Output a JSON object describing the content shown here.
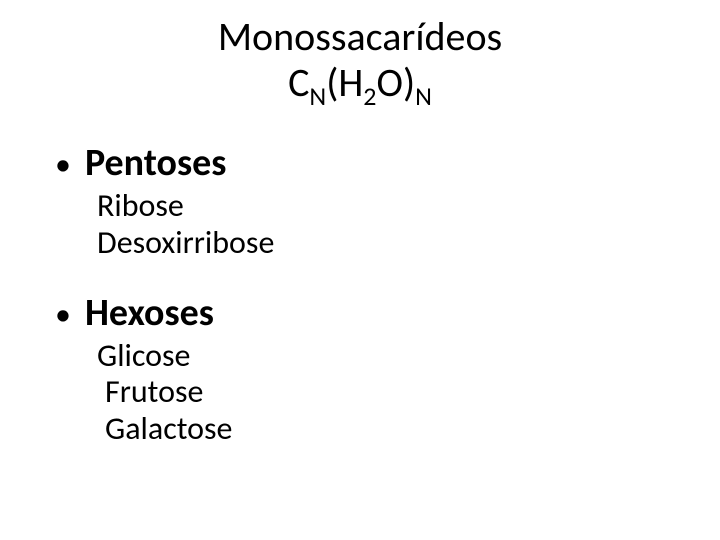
{
  "colors": {
    "background": "#ffffff",
    "text": "#000000"
  },
  "typography": {
    "title_fontsize": 40,
    "bullet_fontsize": 38,
    "subitem_fontsize": 32,
    "font_family": "Calibri, Arial, sans-serif"
  },
  "title": {
    "line1": "Monossacarídeos",
    "formula": {
      "c": "C",
      "sub1": "N",
      "h2o": "(H",
      "sub2": "2",
      "o": "O)",
      "sub3": "N"
    }
  },
  "sections": [
    {
      "bullet": "•",
      "heading": "Pentoses",
      "items": [
        "Ribose",
        "Desoxirribose"
      ]
    },
    {
      "bullet": "•",
      "heading": "Hexoses",
      "items": [
        "Glicose",
        "Frutose",
        "Galactose"
      ]
    }
  ]
}
